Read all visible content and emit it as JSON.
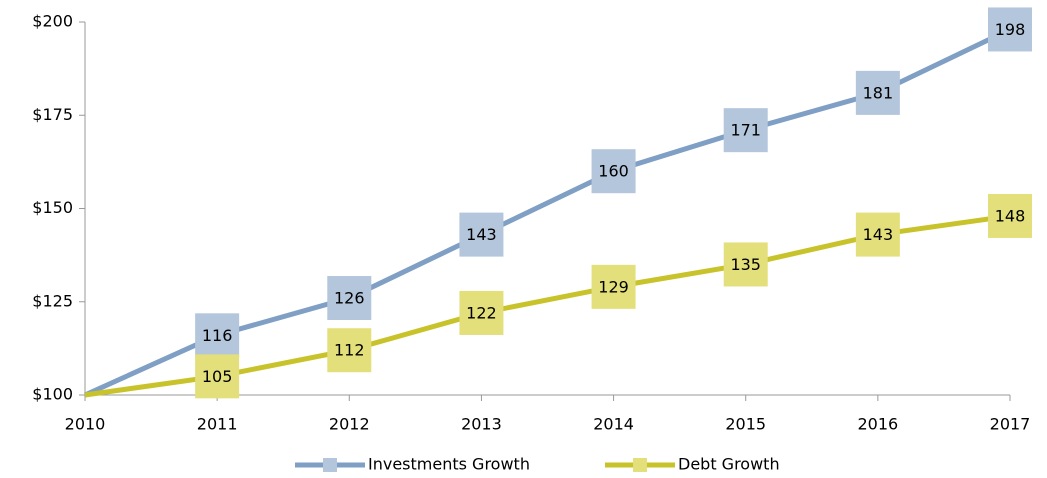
{
  "chart_data": {
    "type": "line",
    "categories": [
      "2010",
      "2011",
      "2012",
      "2013",
      "2014",
      "2015",
      "2016",
      "2017"
    ],
    "series": [
      {
        "name": "Investments Growth",
        "color": "#7f9fc4",
        "marker_color": "#b3c6dc",
        "values": [
          100,
          116,
          126,
          143,
          160,
          171,
          181,
          198
        ],
        "value_labels": [
          null,
          "116",
          "126",
          "143",
          "160",
          "171",
          "181",
          "198"
        ]
      },
      {
        "name": "Debt Growth",
        "color": "#c8c32a",
        "marker_color": "#e3df7a",
        "values": [
          100,
          105,
          112,
          122,
          129,
          135,
          143,
          148
        ],
        "value_labels": [
          null,
          "105",
          "112",
          "122",
          "129",
          "135",
          "143",
          "148"
        ]
      }
    ],
    "ylim": [
      100,
      200
    ],
    "yticks": [
      {
        "value": 100,
        "label": "$100"
      },
      {
        "value": 125,
        "label": "$125"
      },
      {
        "value": 150,
        "label": "$150"
      },
      {
        "value": 175,
        "label": "$175"
      },
      {
        "value": 200,
        "label": "$200"
      }
    ],
    "grid": false,
    "legend": "bottom"
  }
}
